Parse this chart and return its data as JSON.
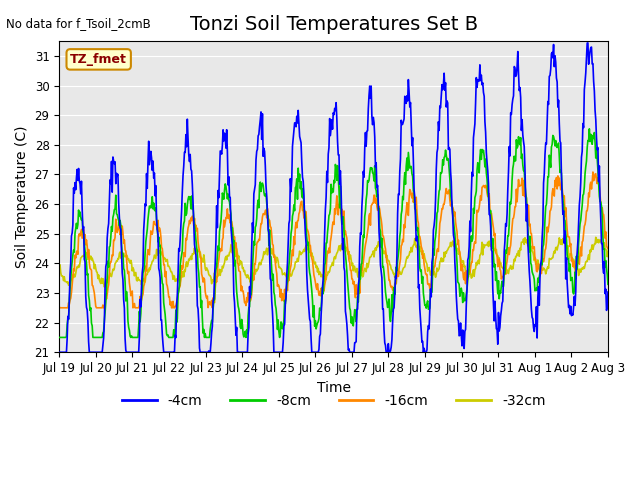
{
  "title": "Tonzi Soil Temperatures Set B",
  "no_data_text": "No data for f_Tsoil_2cmB",
  "tz_fmet_label": "TZ_fmet",
  "ylabel": "Soil Temperature (C)",
  "xlabel": "Time",
  "ylim": [
    21.0,
    31.5
  ],
  "yticks": [
    21.0,
    22.0,
    23.0,
    24.0,
    25.0,
    26.0,
    27.0,
    28.0,
    29.0,
    30.0,
    31.0
  ],
  "background_color": "#e8e8e8",
  "line_colors": {
    "4cm": "#0000ff",
    "8cm": "#00cc00",
    "16cm": "#ff8800",
    "32cm": "#cccc00"
  },
  "legend_labels": [
    "-4cm",
    "-8cm",
    "-16cm",
    "-32cm"
  ],
  "legend_colors": [
    "#0000ff",
    "#00cc00",
    "#ff8800",
    "#cccc00"
  ],
  "xtick_labels": [
    "Jul 19",
    "Jul 20",
    "Jul 21",
    "Jul 22",
    "Jul 23",
    "Jul 24",
    "Jul 25",
    "Jul 26",
    "Jul 27",
    "Jul 28",
    "Jul 29",
    "Jul 30",
    "Jul 31",
    "Aug 1",
    "Aug 2",
    "Aug 3"
  ],
  "title_fontsize": 14,
  "label_fontsize": 10,
  "tick_fontsize": 8.5
}
